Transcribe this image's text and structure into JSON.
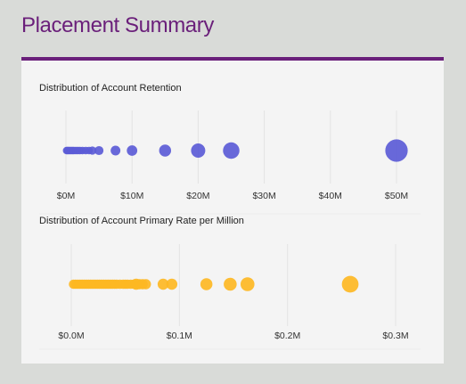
{
  "page": {
    "title": "Placement Summary"
  },
  "colors": {
    "brand": "#6a1f7a",
    "retention_series": "#5b5bd6",
    "rate_series": "#fdb723",
    "card_background": "#f4f4f4",
    "page_background": "#d9dbd8"
  },
  "chart_data": [
    {
      "type": "scatter",
      "title": "Distribution of Account Retention",
      "xlabel": "",
      "ylabel": "",
      "xlim": [
        0,
        50000000
      ],
      "x_ticks": [
        0,
        10000000,
        20000000,
        30000000,
        40000000,
        50000000
      ],
      "x_tick_labels": [
        "$0M",
        "$10M",
        "$20M",
        "$30M",
        "$40M",
        "$50M"
      ],
      "grid": "vertical",
      "legend": "none",
      "series": [
        {
          "color": "#5b5bd6",
          "x": [
            100000,
            250000,
            400000,
            600000,
            800000,
            1000000,
            1200000,
            1500000,
            1800000,
            2100000,
            2500000,
            3000000,
            3500000,
            4000000,
            5000000,
            7500000,
            10000000,
            15000000,
            20000000,
            25000000,
            50000000
          ],
          "size": [
            1,
            1,
            1,
            1,
            1,
            1,
            1,
            1,
            1,
            1,
            1,
            1,
            1,
            1.1,
            1.2,
            1.3,
            1.4,
            1.6,
            1.9,
            2.2,
            3.0
          ]
        }
      ]
    },
    {
      "type": "scatter",
      "title": "Distribution of Account Primary Rate per Million",
      "xlabel": "",
      "ylabel": "",
      "xlim": [
        0,
        0.3
      ],
      "x_ticks": [
        0,
        0.1,
        0.2,
        0.3
      ],
      "x_tick_labels": [
        "$0.0M",
        "$0.1M",
        "$0.2M",
        "$0.3M"
      ],
      "grid": "vertical",
      "legend": "none",
      "series": [
        {
          "color": "#fdb723",
          "x": [
            0.002,
            0.004,
            0.006,
            0.008,
            0.01,
            0.012,
            0.014,
            0.016,
            0.018,
            0.02,
            0.022,
            0.024,
            0.026,
            0.028,
            0.03,
            0.032,
            0.034,
            0.036,
            0.038,
            0.04,
            0.042,
            0.045,
            0.048,
            0.05,
            0.052,
            0.055,
            0.058,
            0.06,
            0.063,
            0.066,
            0.069,
            0.085,
            0.093,
            0.125,
            0.147,
            0.163,
            0.258
          ],
          "size": [
            1,
            1,
            1,
            1,
            1,
            1,
            1,
            1,
            1,
            1,
            1,
            1,
            1,
            1,
            1,
            1,
            1,
            1,
            1,
            1,
            1,
            1,
            1,
            1,
            1,
            1,
            1,
            1.2,
            1.1,
            1.1,
            1.1,
            1.2,
            1.2,
            1.3,
            1.4,
            1.5,
            1.8
          ]
        }
      ]
    }
  ]
}
